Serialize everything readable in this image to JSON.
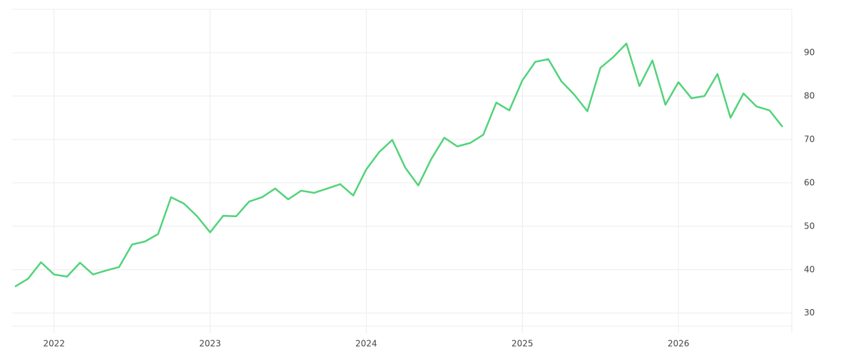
{
  "chart_data": {
    "type": "line",
    "categories": [
      null,
      null,
      null,
      "2022",
      null,
      null,
      null,
      null,
      null,
      null,
      null,
      null,
      null,
      null,
      null,
      "2023",
      null,
      null,
      null,
      null,
      null,
      null,
      null,
      null,
      null,
      null,
      null,
      "2024",
      null,
      null,
      null,
      null,
      null,
      null,
      null,
      null,
      null,
      null,
      null,
      "2025",
      null,
      null,
      null,
      null,
      null,
      null,
      null,
      null,
      null,
      null,
      null,
      "2026",
      null,
      null,
      null,
      null,
      null,
      null,
      null,
      null
    ],
    "values": [
      36.1,
      37.9,
      41.7,
      38.9,
      38.4,
      41.6,
      38.9,
      39.8,
      40.6,
      45.8,
      46.5,
      48.2,
      56.7,
      55.2,
      52.3,
      48.6,
      52.4,
      52.3,
      55.7,
      56.7,
      58.7,
      56.2,
      58.2,
      57.7,
      58.7,
      59.7,
      57.1,
      63.1,
      67.1,
      69.9,
      63.5,
      59.4,
      65.5,
      70.4,
      68.4,
      69.2,
      71.1,
      78.5,
      76.7,
      83.6,
      87.9,
      88.5,
      83.4,
      80.3,
      76.5,
      86.5,
      89.0,
      92.1,
      82.3,
      88.2,
      78.0,
      83.2,
      79.5,
      80.0,
      85.1,
      75.0,
      80.6,
      77.6,
      76.7,
      72.9
    ],
    "color": "#52d37a",
    "ylim": [
      27,
      100
    ],
    "yticks": [
      30,
      40,
      50,
      60,
      70,
      80,
      90
    ],
    "grid": true
  }
}
